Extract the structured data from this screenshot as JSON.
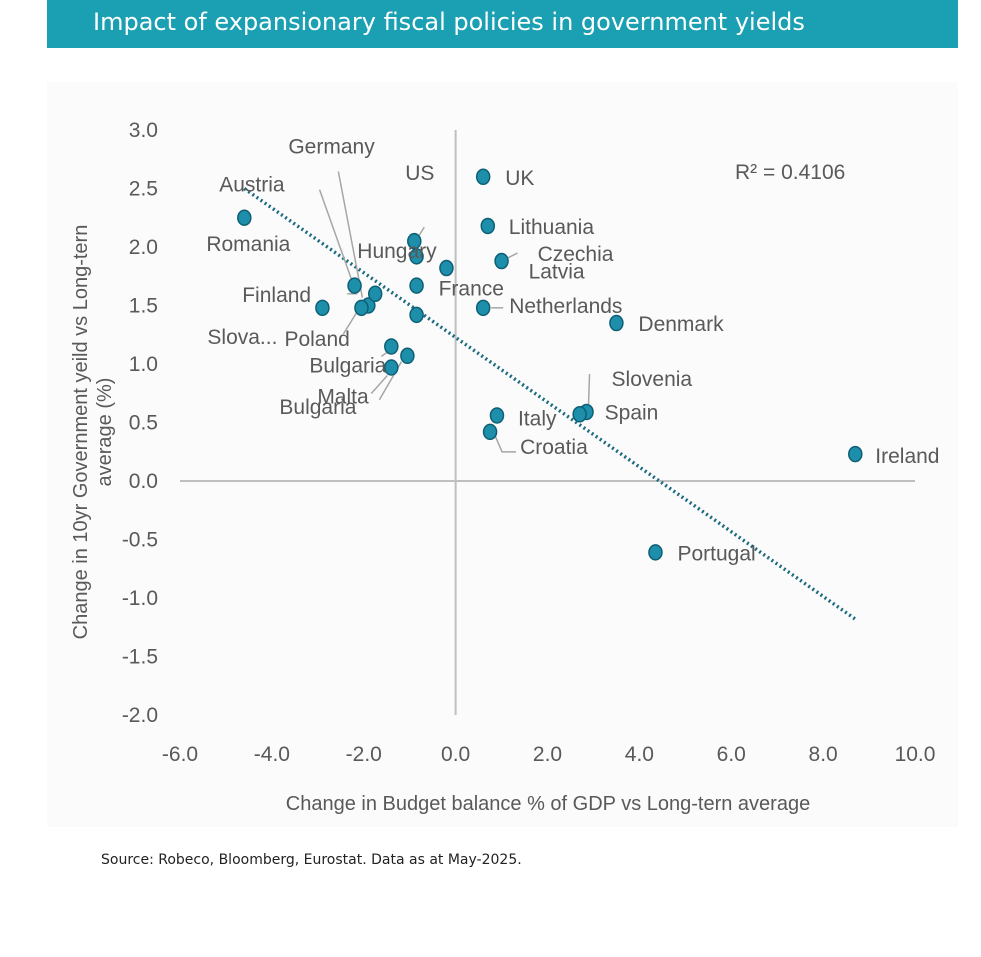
{
  "title": "Impact of expansionary fiscal policies in government yields",
  "source": "Source: Robeco, Bloomberg, Eurostat. Data as at  May-2025.",
  "colors": {
    "title_bg": "#1a9fb3",
    "point": "#1e8faa",
    "point_stroke": "#0e5f75",
    "trendline": "#1b6a80",
    "axis_text": "#595959",
    "axis_line": "#bfbfbf"
  },
  "chart_data": {
    "type": "scatter",
    "xlabel": "Change in Budget balance % of GDP vs Long-tern average",
    "ylabel": "Change in 10yr Government yeild vs Long-tern average (%)",
    "xlim": [
      -6.0,
      10.0
    ],
    "ylim": [
      -2.0,
      3.0
    ],
    "xticks": [
      "-6.0",
      "-4.0",
      "-2.0",
      "0.0",
      "2.0",
      "4.0",
      "6.0",
      "8.0",
      "10.0"
    ],
    "yticks": [
      "3.0",
      "2.5",
      "2.0",
      "1.5",
      "1.0",
      "0.5",
      "0.0",
      "-0.5",
      "-1.0",
      "-1.5",
      "-2.0"
    ],
    "annotation": "R² = 0.4106",
    "trendline": {
      "x": [
        -4.6,
        8.7
      ],
      "y": [
        2.5,
        -1.18
      ],
      "style": "dotted"
    },
    "points": [
      {
        "label": "UK",
        "x": 0.6,
        "y": 2.6
      },
      {
        "label": "US",
        "x": -0.2,
        "y": 1.82
      },
      {
        "label": "Austria",
        "x": -2.2,
        "y": 1.67
      },
      {
        "label": "Romania",
        "x": -4.6,
        "y": 2.25
      },
      {
        "label": "Germany",
        "x": -1.9,
        "y": 1.5
      },
      {
        "label": "Hungary",
        "x": -0.9,
        "y": 2.05
      },
      {
        "label": "Lithuania",
        "x": 0.7,
        "y": 2.18
      },
      {
        "label": "Czechia",
        "x": 1.0,
        "y": 1.88
      },
      {
        "label": "Latvia",
        "x": -0.85,
        "y": 1.92
      },
      {
        "label": "France",
        "x": -0.85,
        "y": 1.67
      },
      {
        "label": "Finland",
        "x": -1.75,
        "y": 1.6
      },
      {
        "label": "Netherlands",
        "x": 0.6,
        "y": 1.48
      },
      {
        "label": "Denmark",
        "x": 3.5,
        "y": 1.35
      },
      {
        "label": "Slova...",
        "x": -2.9,
        "y": 1.48
      },
      {
        "label": "Poland",
        "x": -2.05,
        "y": 1.48
      },
      {
        "label": "Bulgaria",
        "x": -1.4,
        "y": 1.15
      },
      {
        "label": "Malta",
        "x": -1.4,
        "y": 0.97
      },
      {
        "label": "Bulgaria",
        "x": -1.05,
        "y": 1.07
      },
      {
        "label": "Slovenia",
        "x": 2.85,
        "y": 0.59
      },
      {
        "label": "Spain",
        "x": 2.7,
        "y": 0.57
      },
      {
        "label": "Italy",
        "x": 0.9,
        "y": 0.56
      },
      {
        "label": "Croatia",
        "x": 0.75,
        "y": 0.42
      },
      {
        "label": "Ireland",
        "x": 8.7,
        "y": 0.23
      },
      {
        "label": "Portugal",
        "x": 4.35,
        "y": -0.61
      },
      {
        "label": "",
        "x": -0.85,
        "y": 1.42
      }
    ]
  }
}
